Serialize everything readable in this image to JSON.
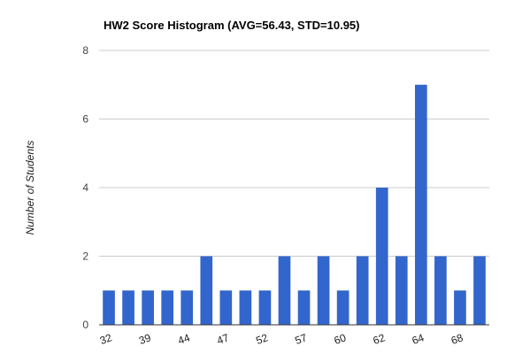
{
  "chart_data": {
    "type": "bar",
    "title": "HW2 Score Histogram (AVG=56.43, STD=10.95)",
    "xlabel": "",
    "ylabel": "Number of Students",
    "ylim": [
      0,
      8
    ],
    "yticks": [
      0,
      2,
      4,
      6,
      8
    ],
    "grid": true,
    "legend": "none",
    "bar_color": "#3366cc",
    "categories": [
      "32",
      "",
      "39",
      "",
      "44",
      "",
      "47",
      "",
      "52",
      "",
      "57",
      "",
      "60",
      "",
      "62",
      "",
      "64",
      "",
      "68",
      ""
    ],
    "values": [
      1,
      1,
      1,
      1,
      1,
      2,
      1,
      1,
      1,
      2,
      1,
      2,
      1,
      2,
      4,
      2,
      7,
      2,
      1,
      2
    ]
  }
}
